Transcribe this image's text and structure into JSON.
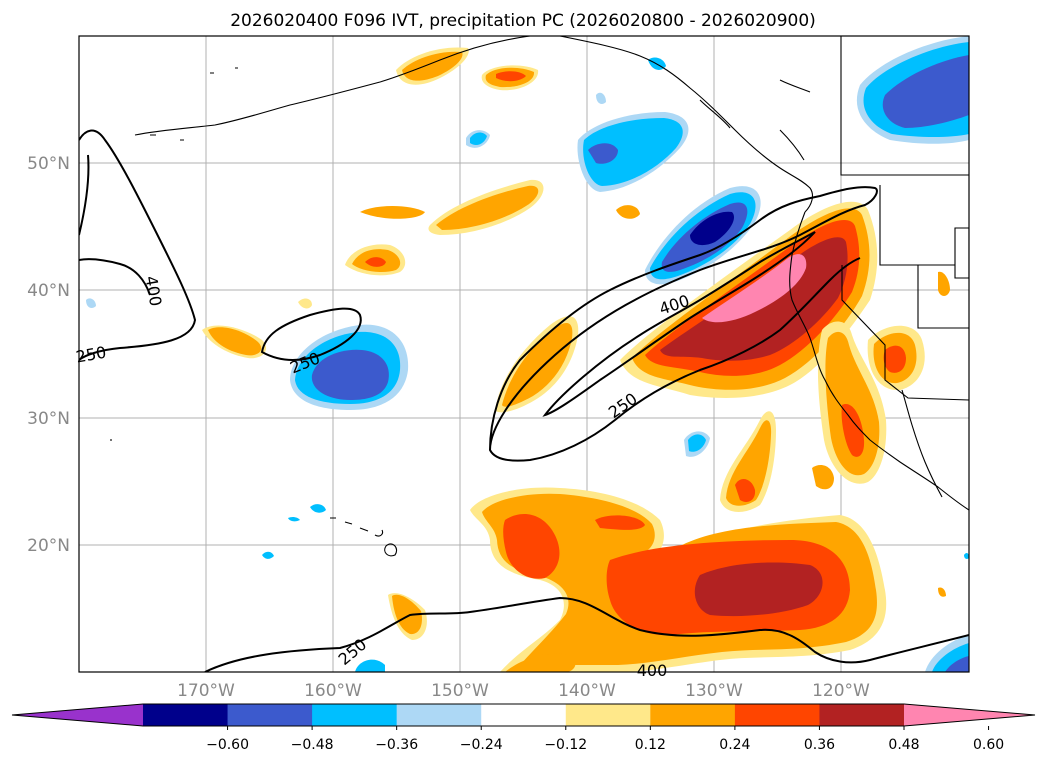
{
  "title": "2026020400 F096 IVT, precipitation PC (2026020800 - 2026020900)",
  "lat_labels": [
    "50°N",
    "40°N",
    "30°N",
    "20°N"
  ],
  "lon_labels": [
    "170°W",
    "160°W",
    "150°W",
    "140°W",
    "130°W",
    "120°W"
  ],
  "contour_labels": [
    "400",
    "250",
    "250",
    "400",
    "250",
    "250",
    "400"
  ],
  "colorbar": {
    "tick_labels": [
      "−0.60",
      "−0.48",
      "−0.36",
      "−0.24",
      "−0.12",
      "0.12",
      "0.24",
      "0.36",
      "0.48",
      "0.60"
    ],
    "colors": [
      "#9932cc",
      "#00008b",
      "#3c5acd",
      "#00bfff",
      "#add8f5",
      "#ffffff",
      "#ffe88a",
      "#ffa500",
      "#ff4500",
      "#b22222",
      "#ff85b0"
    ]
  },
  "palette": {
    "pos_1": "#ffe88a",
    "pos_2": "#ffa500",
    "pos_3": "#ff4500",
    "pos_4": "#b22222",
    "pos_5": "#ff85b0",
    "neg_1": "#add8f5",
    "neg_2": "#00bfff",
    "neg_3": "#3c5acd",
    "neg_4": "#00008b"
  }
}
